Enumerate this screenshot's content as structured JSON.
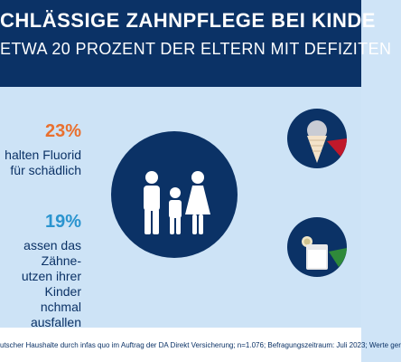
{
  "header": {
    "title": "CHLÄSSIGE ZAHNPFLEGE BEI KINDE",
    "subtitle": "ETWA 20 PROZENT DER ELTERN MIT DEFIZITEN"
  },
  "stats": [
    {
      "value": "23%",
      "text": "halten Fluorid\nfür schädlich"
    },
    {
      "value": "19%",
      "text": "assen das Zähne-\nutzen ihrer Kinder\nnchmal ausfallen"
    }
  ],
  "icons": {
    "center": "family-icon",
    "right_top": "ice-cream-icon",
    "right_bottom": "lemonade-glass-icon"
  },
  "colors": {
    "navy": "#0b3266",
    "orange": "#e9702f",
    "blue": "#2a94cf",
    "red": "#c0182a",
    "green": "#2f8a3a"
  },
  "footer": {
    "text": "utscher Haushalte durch infas quo im Auftrag der DA Direkt Versicherung; n=1.076; Befragungszeitraum: Juli 2023; Werte ger"
  }
}
